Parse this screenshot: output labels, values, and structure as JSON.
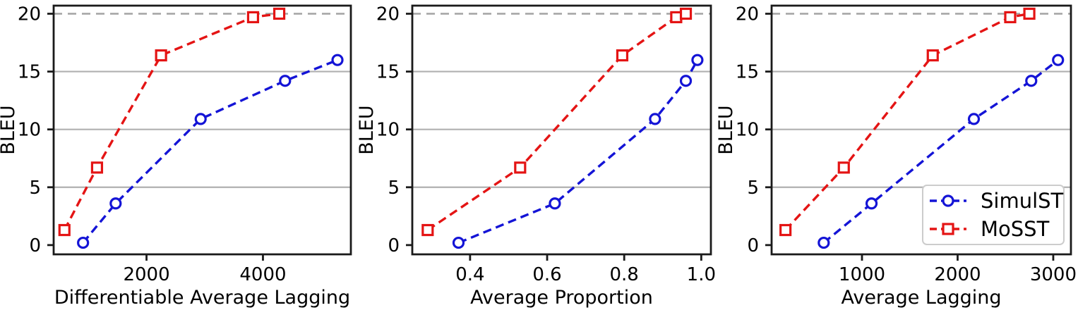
{
  "figure": {
    "background": "#ffffff",
    "colors": {
      "simulst": "#1414d6",
      "mosst": "#e41414",
      "grid": "#b0b0b0",
      "refline": "#a3a3a3",
      "spine": "#1a1a1a",
      "text": "#000000",
      "legend_border": "#cccccc",
      "legend_bg": "#ffffff",
      "marker_fill": "#ffffff"
    }
  },
  "chart_data": [
    {
      "id": "dal",
      "type": "line",
      "xlabel": "Differentiable Average Lagging",
      "ylabel": "BLEU",
      "xlim": [
        405,
        5510
      ],
      "ylim": [
        -0.8,
        20.7
      ],
      "xticks": [
        2000,
        4000
      ],
      "xtick_labels": [
        "2000",
        "4000"
      ],
      "yticks": [
        0,
        5,
        10,
        15,
        20
      ],
      "ytick_labels": [
        "0",
        "5",
        "10",
        "15",
        "20"
      ],
      "gridlines_y": [
        5,
        10,
        15
      ],
      "refline_y": 20,
      "grid": "on",
      "series": [
        {
          "name": "SimulST",
          "marker": "circle",
          "color_key": "simulst",
          "x": [
            910,
            1470,
            2930,
            4380,
            5280
          ],
          "y": [
            0.2,
            3.6,
            10.9,
            14.2,
            16.0
          ]
        },
        {
          "name": "MoSST",
          "marker": "square",
          "color_key": "mosst",
          "x": [
            590,
            1150,
            2250,
            3830,
            4280
          ],
          "y": [
            1.3,
            6.7,
            16.4,
            19.7,
            20.0
          ]
        }
      ]
    },
    {
      "id": "ap",
      "type": "line",
      "xlabel": "Average Proportion",
      "ylabel": "BLEU",
      "xlim": [
        0.25,
        1.025
      ],
      "ylim": [
        -0.8,
        20.7
      ],
      "xticks": [
        0.4,
        0.6,
        0.8,
        1.0
      ],
      "xtick_labels": [
        "0.4",
        "0.6",
        "0.8",
        "1.0"
      ],
      "yticks": [
        0,
        5,
        10,
        15,
        20
      ],
      "ytick_labels": [
        "0",
        "5",
        "10",
        "15",
        "20"
      ],
      "gridlines_y": [
        5,
        10,
        15
      ],
      "refline_y": 20,
      "grid": "on",
      "series": [
        {
          "name": "SimulST",
          "marker": "circle",
          "color_key": "simulst",
          "x": [
            0.37,
            0.62,
            0.88,
            0.96,
            0.99
          ],
          "y": [
            0.2,
            3.6,
            10.9,
            14.2,
            16.0
          ]
        },
        {
          "name": "MoSST",
          "marker": "square",
          "color_key": "mosst",
          "x": [
            0.29,
            0.53,
            0.795,
            0.935,
            0.96
          ],
          "y": [
            1.3,
            6.7,
            16.4,
            19.7,
            20.0
          ]
        }
      ]
    },
    {
      "id": "al",
      "type": "line",
      "xlabel": "Average Lagging",
      "ylabel": "BLEU",
      "xlim": [
        55,
        3185
      ],
      "ylim": [
        -0.8,
        20.7
      ],
      "xticks": [
        1000,
        2000,
        3000
      ],
      "xtick_labels": [
        "1000",
        "2000",
        "3000"
      ],
      "yticks": [
        0,
        5,
        10,
        15,
        20
      ],
      "ytick_labels": [
        "0",
        "5",
        "10",
        "15",
        "20"
      ],
      "gridlines_y": [
        5,
        10,
        15
      ],
      "refline_y": 20,
      "grid": "on",
      "legend": {
        "position": "lower right",
        "entries": [
          {
            "label": "SimulST",
            "marker": "circle",
            "color_key": "simulst"
          },
          {
            "label": "MoSST",
            "marker": "square",
            "color_key": "mosst"
          }
        ]
      },
      "series": [
        {
          "name": "SimulST",
          "marker": "circle",
          "color_key": "simulst",
          "x": [
            600,
            1100,
            2170,
            2770,
            3050
          ],
          "y": [
            0.2,
            3.6,
            10.9,
            14.2,
            16.0
          ]
        },
        {
          "name": "MoSST",
          "marker": "square",
          "color_key": "mosst",
          "x": [
            200,
            810,
            1740,
            2550,
            2750
          ],
          "y": [
            1.3,
            6.7,
            16.4,
            19.7,
            20.0
          ]
        }
      ]
    }
  ]
}
